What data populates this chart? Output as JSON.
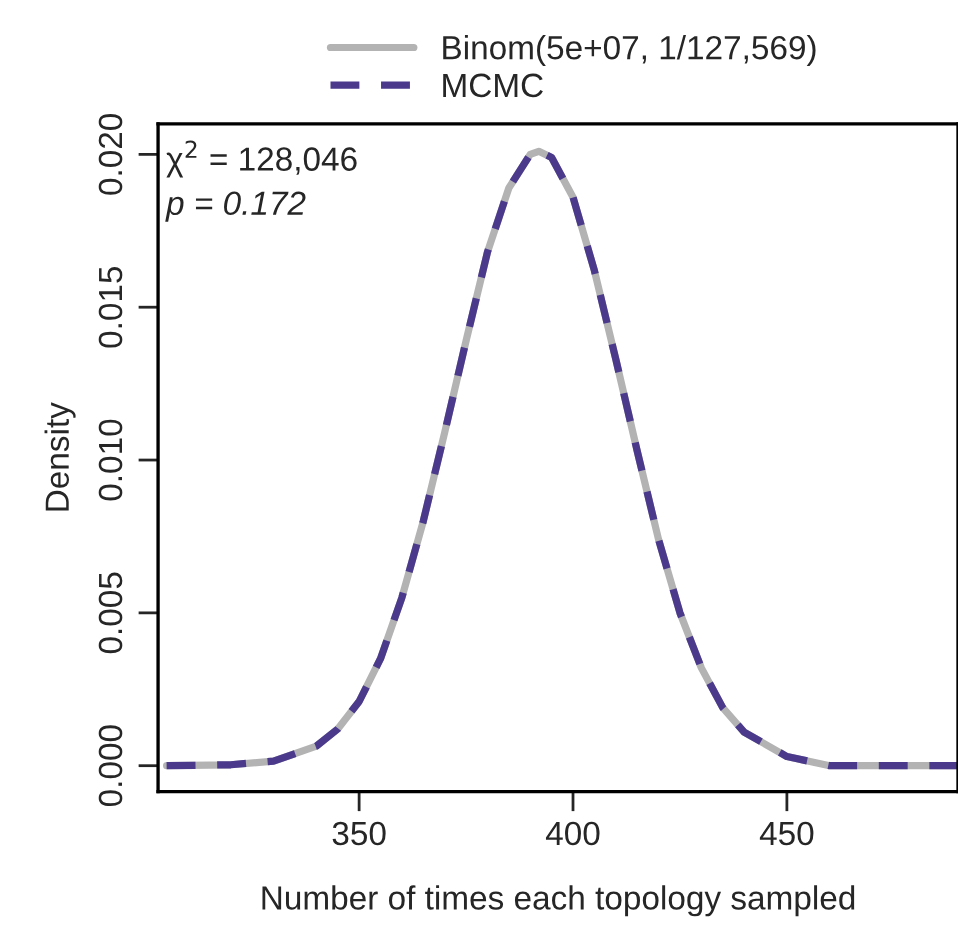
{
  "chart_data": {
    "type": "line",
    "xlabel": "Number of times each topology sampled",
    "ylabel": "Density",
    "x": [
      305,
      320,
      330,
      340,
      345,
      350,
      355,
      360,
      365,
      370,
      375,
      380,
      385,
      390,
      392,
      395,
      400,
      405,
      410,
      415,
      420,
      425,
      430,
      435,
      440,
      450,
      460,
      475,
      490
    ],
    "series": [
      {
        "name": "Binom(5e+07, 1/127,569)",
        "color": "#b3b3b3",
        "line_style": "solid",
        "values": [
          0.0,
          3e-05,
          0.00015,
          0.00064,
          0.0012,
          0.0021,
          0.0035,
          0.0055,
          0.008,
          0.0109,
          0.0139,
          0.0168,
          0.0189,
          0.02,
          0.0201,
          0.0199,
          0.0186,
          0.0162,
          0.0133,
          0.0103,
          0.0074,
          0.005,
          0.0032,
          0.0019,
          0.0011,
          0.0003,
          0.0,
          0.0,
          0.0
        ]
      },
      {
        "name": "MCMC",
        "color": "#4b3a8c",
        "line_style": "dashed",
        "values": [
          0.0,
          3e-05,
          0.00015,
          0.00064,
          0.0012,
          0.0021,
          0.0035,
          0.0055,
          0.008,
          0.0109,
          0.0139,
          0.0168,
          0.0189,
          0.02,
          0.0201,
          0.0199,
          0.0186,
          0.0162,
          0.0133,
          0.0103,
          0.0074,
          0.005,
          0.0032,
          0.0019,
          0.0011,
          0.0003,
          0.0,
          0.0,
          0.0
        ]
      }
    ],
    "xlim": [
      303,
      490
    ],
    "xticks": [
      350,
      400,
      450
    ],
    "ylim": [
      -0.00085,
      0.021
    ],
    "yticks": [
      {
        "value": 0,
        "label": "0.000"
      },
      {
        "value": 0.005,
        "label": "0.005"
      },
      {
        "value": 0.01,
        "label": "0.010"
      },
      {
        "value": 0.015,
        "label": "0.015"
      },
      {
        "value": 0.02,
        "label": "0.020"
      }
    ],
    "annotations": [
      "χ$^{2}$ = 128,046",
      "p = 0.172"
    ],
    "legend": "top",
    "grid": false,
    "marker": "none"
  }
}
